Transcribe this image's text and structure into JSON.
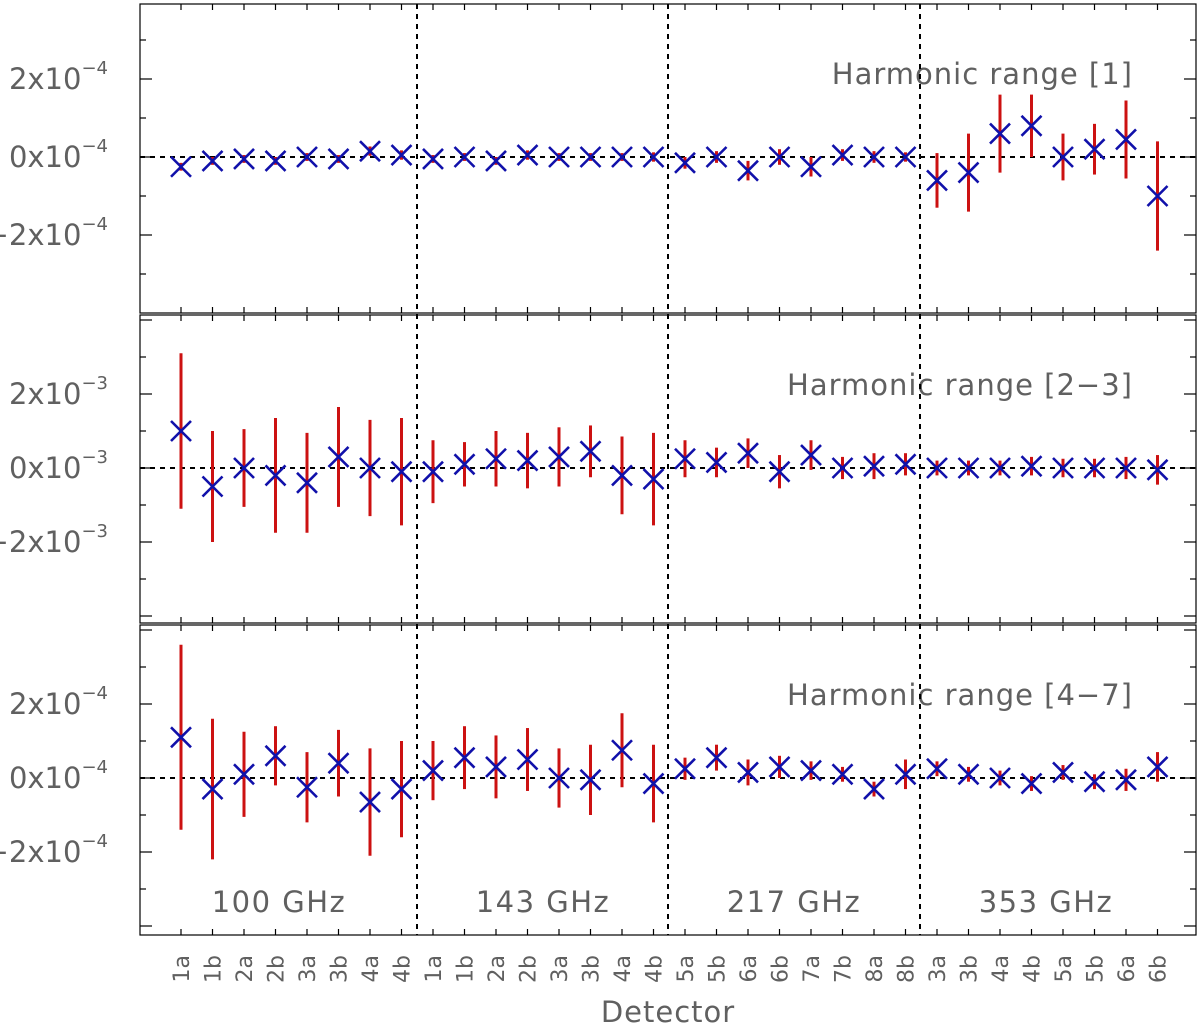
{
  "chart_data": {
    "type": "scatter",
    "xlabel": "Detector",
    "categories": [
      "1a",
      "1b",
      "2a",
      "2b",
      "3a",
      "3b",
      "4a",
      "4b",
      "1a",
      "1b",
      "2a",
      "2b",
      "3a",
      "3b",
      "4a",
      "4b",
      "5a",
      "5b",
      "6a",
      "6b",
      "7a",
      "7b",
      "8a",
      "8b",
      "3a",
      "3b",
      "4a",
      "4b",
      "5a",
      "5b",
      "6a",
      "6b"
    ],
    "groups": [
      {
        "label": "100 GHz",
        "start": 0,
        "end": 7
      },
      {
        "label": "143 GHz",
        "start": 8,
        "end": 15
      },
      {
        "label": "217 GHz",
        "start": 16,
        "end": 23
      },
      {
        "label": "353 GHz",
        "start": 24,
        "end": 31
      }
    ],
    "panels": [
      {
        "title": "Harmonic range [1]",
        "scale": "1e-4",
        "ylim": [
          -4.0,
          4.0
        ],
        "ytick_values": [
          -2,
          0,
          2
        ],
        "ytick_labels": [
          {
            "base": "−2x10",
            "exp": "−4"
          },
          {
            "base": "0x10",
            "exp": "−4"
          },
          {
            "base": "2x10",
            "exp": "−4"
          }
        ],
        "values": [
          -0.25,
          -0.1,
          -0.05,
          -0.1,
          0.0,
          -0.05,
          0.15,
          0.05,
          -0.05,
          0.0,
          -0.1,
          0.05,
          0.0,
          0.0,
          0.0,
          0.0,
          -0.15,
          0.0,
          -0.35,
          0.0,
          -0.25,
          0.05,
          0.0,
          0.0,
          -0.6,
          -0.4,
          0.6,
          0.8,
          0.0,
          0.2,
          0.45,
          -1.0
        ],
        "errors": [
          0.1,
          0.1,
          0.1,
          0.1,
          0.1,
          0.1,
          0.12,
          0.12,
          0.1,
          0.1,
          0.1,
          0.12,
          0.1,
          0.1,
          0.1,
          0.12,
          0.15,
          0.15,
          0.25,
          0.2,
          0.25,
          0.15,
          0.15,
          0.12,
          0.7,
          1.0,
          1.0,
          0.8,
          0.6,
          0.65,
          1.0,
          1.4
        ]
      },
      {
        "title": "Harmonic range [2−3]",
        "scale": "1e-3",
        "ylim": [
          -4.0,
          4.0
        ],
        "ytick_values": [
          -2,
          0,
          2
        ],
        "ytick_labels": [
          {
            "base": "−2x10",
            "exp": "−3"
          },
          {
            "base": "0x10",
            "exp": "−3"
          },
          {
            "base": "2x10",
            "exp": "−3"
          }
        ],
        "values": [
          1.0,
          -0.5,
          0.0,
          -0.2,
          -0.4,
          0.3,
          0.0,
          -0.1,
          -0.1,
          0.1,
          0.25,
          0.2,
          0.3,
          0.45,
          -0.2,
          -0.3,
          0.25,
          0.15,
          0.4,
          -0.1,
          0.35,
          0.0,
          0.05,
          0.1,
          0.0,
          0.0,
          0.0,
          0.05,
          0.0,
          0.0,
          0.0,
          -0.05
        ],
        "errors": [
          2.1,
          1.5,
          1.05,
          1.55,
          1.35,
          1.35,
          1.3,
          1.45,
          0.85,
          0.6,
          0.75,
          0.75,
          0.8,
          0.7,
          1.05,
          1.25,
          0.5,
          0.4,
          0.4,
          0.45,
          0.4,
          0.3,
          0.35,
          0.3,
          0.2,
          0.2,
          0.2,
          0.25,
          0.25,
          0.25,
          0.3,
          0.4
        ]
      },
      {
        "title": "Harmonic range [4−7]",
        "scale": "1e-4",
        "ylim": [
          -4.0,
          4.0
        ],
        "ytick_values": [
          -2,
          0,
          2
        ],
        "ytick_labels": [
          {
            "base": "−2x10",
            "exp": "−4"
          },
          {
            "base": "0x10",
            "exp": "−4"
          },
          {
            "base": "2x10",
            "exp": "−4"
          }
        ],
        "values": [
          1.1,
          -0.3,
          0.1,
          0.6,
          -0.25,
          0.4,
          -0.65,
          -0.3,
          0.2,
          0.55,
          0.3,
          0.5,
          0.0,
          -0.05,
          0.75,
          -0.15,
          0.25,
          0.55,
          0.15,
          0.3,
          0.2,
          0.1,
          -0.3,
          0.1,
          0.25,
          0.1,
          0.0,
          -0.15,
          0.15,
          -0.1,
          -0.05,
          0.3
        ],
        "errors": [
          2.5,
          1.9,
          1.15,
          0.8,
          0.95,
          0.9,
          1.45,
          1.3,
          0.8,
          0.85,
          0.85,
          0.85,
          0.8,
          0.95,
          1.0,
          1.05,
          0.3,
          0.35,
          0.35,
          0.3,
          0.25,
          0.2,
          0.2,
          0.4,
          0.2,
          0.2,
          0.2,
          0.2,
          0.2,
          0.2,
          0.3,
          0.4
        ]
      }
    ]
  }
}
